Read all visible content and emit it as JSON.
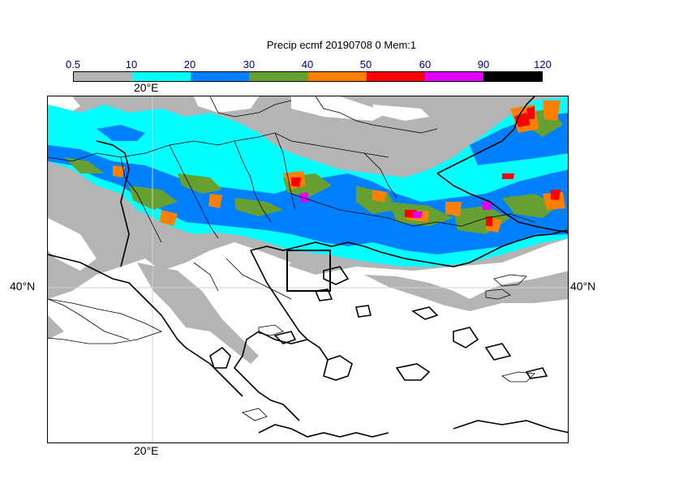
{
  "title": "Precip ecmf 20190708 0 Mem:1",
  "colorbar": {
    "labels": [
      "0.5",
      "10",
      "20",
      "30",
      "40",
      "50",
      "60",
      "90",
      "120"
    ],
    "colors": [
      "#b4b4b4",
      "#00ffff",
      "#0080ff",
      "#66a033",
      "#ff8000",
      "#ff0000",
      "#e000ff",
      "#000000"
    ]
  },
  "axes": {
    "lon_label_top": "20°E",
    "lon_label_bottom": "20°E",
    "lat_label_left": "40°N",
    "lat_label_right": "40°N"
  }
}
